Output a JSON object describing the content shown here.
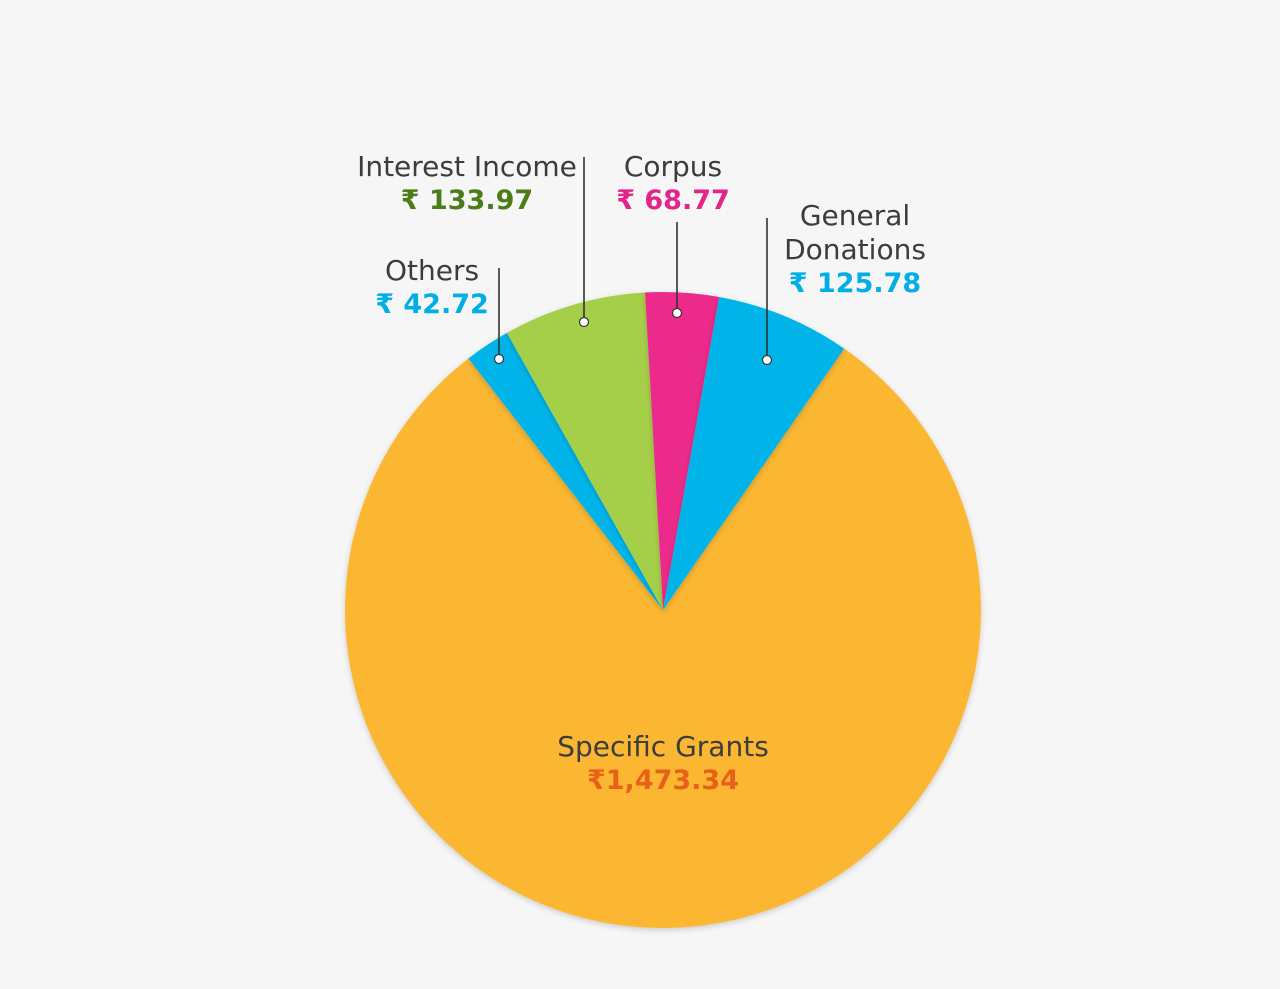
{
  "chart_data": {
    "type": "pie",
    "currency_symbol": "₹",
    "slices": [
      {
        "label": "Specific Grants",
        "value": 1473.34,
        "value_text": "₹1,473.34",
        "color": "#fbb731",
        "value_color": "#e8611a"
      },
      {
        "label": "Others",
        "value": 42.72,
        "value_text": "₹ 42.72",
        "color": "#00b4ea",
        "value_color": "#00aee8"
      },
      {
        "label": "Interest Income",
        "value": 133.97,
        "value_text": "₹ 133.97",
        "color": "#a6cf48",
        "value_color": "#4a7d17"
      },
      {
        "label": "Corpus",
        "value": 68.77,
        "value_text": "₹ 68.77",
        "color": "#ec2a8b",
        "value_color": "#e5248a"
      },
      {
        "label": "General\nDonations",
        "value": 125.78,
        "value_text": "₹ 125.78",
        "color": "#00b4ea",
        "value_color": "#00aee8"
      }
    ]
  }
}
